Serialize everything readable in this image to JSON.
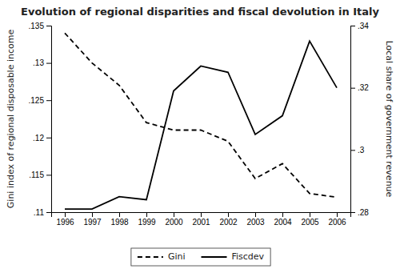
{
  "chart_data": {
    "type": "line",
    "title": "Evolution of regional disparities and fiscal devolution in Italy",
    "ylabel": "Gini index of regional disposable income",
    "y2label": "Local share of government revenue",
    "x": [
      1996,
      1997,
      1998,
      1999,
      2000,
      2001,
      2002,
      2003,
      2004,
      2005,
      2006
    ],
    "xlim": [
      1995.5,
      2006.5
    ],
    "xticks": [
      1996,
      1997,
      1998,
      1999,
      2000,
      2001,
      2002,
      2003,
      2004,
      2005,
      2006
    ],
    "ylim": [
      0.11,
      0.135
    ],
    "yticks": [
      {
        "value": 0.11,
        "label": ".11"
      },
      {
        "value": 0.115,
        "label": ".115"
      },
      {
        "value": 0.12,
        "label": ".12"
      },
      {
        "value": 0.125,
        "label": ".125"
      },
      {
        "value": 0.13,
        "label": ".13"
      },
      {
        "value": 0.135,
        "label": ".135"
      }
    ],
    "y2lim": [
      0.28,
      0.34
    ],
    "y2ticks": [
      {
        "value": 0.28,
        "label": ".28"
      },
      {
        "value": 0.3,
        "label": ".3"
      },
      {
        "value": 0.32,
        "label": ".32"
      },
      {
        "value": 0.34,
        "label": ".34"
      }
    ],
    "grid": false,
    "legend": "bottom",
    "series": [
      {
        "name": "Gini",
        "color": "#000000",
        "line_style": "dashed",
        "values": [
          0.134,
          0.13,
          0.127,
          0.122,
          0.121,
          0.121,
          0.1195,
          0.1145,
          0.1165,
          0.1125,
          0.112
        ]
      },
      {
        "name": "Fiscdev",
        "color": "#000000",
        "line_style": "solid",
        "axis": "y2",
        "values": [
          0.281,
          0.281,
          0.285,
          0.284,
          0.319,
          0.327,
          0.325,
          0.305,
          0.311,
          0.335,
          0.32
        ]
      }
    ]
  }
}
